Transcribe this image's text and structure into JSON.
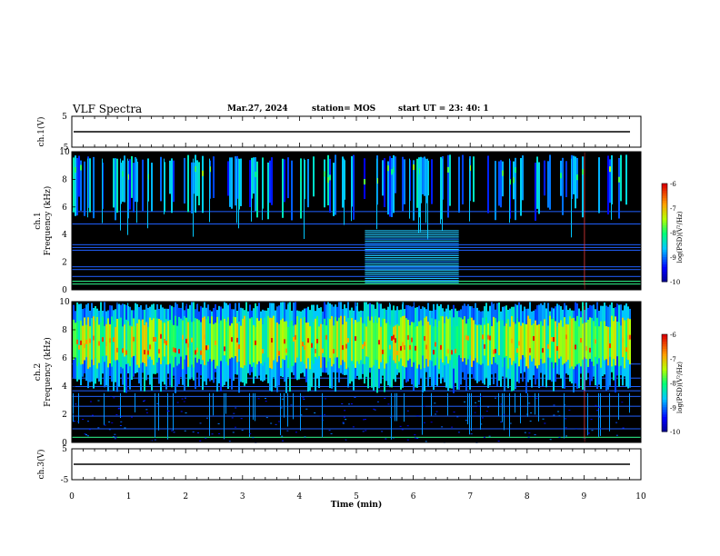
{
  "header": {
    "title": "VLF Spectra",
    "date": "Mar.27, 2024",
    "station": "station= MOS",
    "start": "start  UT  =   23: 40: 1"
  },
  "chart_data": [
    {
      "type": "line",
      "name": "ch1-voltage",
      "ylabel": "ch.1(V)",
      "ylim": [
        -5,
        5
      ],
      "yticks": [
        5,
        -5
      ],
      "xlim": [
        0,
        10
      ],
      "line_value": 0
    },
    {
      "type": "heatmap",
      "name": "ch1-spectrogram",
      "ylabel": "ch.1\nFrequency (kHz)",
      "ylim": [
        0,
        10
      ],
      "yticks": [
        0,
        2,
        4,
        6,
        8,
        10
      ],
      "xlim": [
        0,
        10
      ],
      "colorbar": {
        "label": "log(PSD)(V²/Hz)",
        "range": [
          -10,
          -6
        ],
        "ticks": [
          -6,
          -7,
          -8,
          -9,
          -10
        ]
      }
    },
    {
      "type": "heatmap",
      "name": "ch2-spectrogram",
      "ylabel": "ch.2\nFrequency (kHz)",
      "ylim": [
        0,
        10
      ],
      "yticks": [
        0,
        2,
        4,
        6,
        8,
        10
      ],
      "xlim": [
        0,
        10
      ],
      "colorbar": {
        "label": "log(PSD)(V²/Hz)",
        "range": [
          -10,
          -6
        ],
        "ticks": [
          -6,
          -7,
          -8,
          -9,
          -10
        ]
      }
    },
    {
      "type": "line",
      "name": "ch3-voltage",
      "ylabel": "ch.3(V)",
      "ylim": [
        -5,
        5
      ],
      "yticks": [
        5,
        -5
      ],
      "xlim": [
        0,
        10
      ],
      "line_value": 0,
      "xlabel": "Time (min)",
      "xticks": [
        0,
        1,
        2,
        3,
        4,
        5,
        6,
        7,
        8,
        9,
        10
      ]
    }
  ]
}
